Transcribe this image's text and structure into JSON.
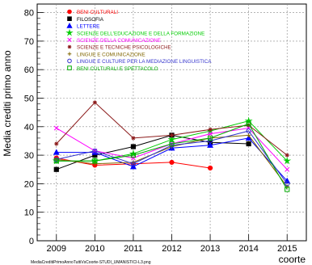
{
  "chart_data": {
    "type": "line",
    "xlabel": "coorte",
    "ylabel": "Media crediti primo anno",
    "footer": "MediaCreditiPrimoAnnoTuttiVsCoorte-STUDI_UMANISTICI-L3.png",
    "x": [
      2009,
      2010,
      2011,
      2012,
      2013,
      2014,
      2015
    ],
    "xlim": [
      2008.5,
      2015.5
    ],
    "ylim": [
      0,
      83
    ],
    "yticks": [
      0,
      10,
      20,
      30,
      40,
      50,
      60,
      70,
      80
    ],
    "grid": true,
    "legend_position": "top-left",
    "series": [
      {
        "name": "BENI CULTURALI",
        "color": "#ff0000",
        "marker": "circle",
        "values": [
          29,
          26.5,
          27,
          27.5,
          25.5,
          null,
          null
        ]
      },
      {
        "name": "FILOSOFIA",
        "color": "#000000",
        "marker": "square",
        "values": [
          25,
          30,
          33,
          37,
          34.5,
          34,
          null
        ]
      },
      {
        "name": "LETTERE",
        "color": "#0000ff",
        "marker": "triangle",
        "values": [
          31,
          31,
          26,
          32.5,
          33.5,
          36,
          21
        ]
      },
      {
        "name": "SCIENZE DELL'EDUCAZIONE E DELLA FORMAZIONE",
        "color": "#00cc00",
        "marker": "star",
        "values": [
          28,
          28,
          30.5,
          35.5,
          38.5,
          42,
          28
        ]
      },
      {
        "name": "SCIENZE DELLA COMUNICAZIONE",
        "color": "#ff00ff",
        "marker": "x",
        "values": [
          39.5,
          31.5,
          29,
          34,
          37.5,
          39.5,
          25
        ]
      },
      {
        "name": "SCIENZE E TECNICHE PSICOLOGICHE",
        "color": "#8b1a1a",
        "marker": "asterisk",
        "values": [
          34,
          48.5,
          36,
          37,
          39,
          40.5,
          30
        ]
      },
      {
        "name": "LINGUE E COMUNICAZIONE",
        "color": "#806600",
        "marker": "plus",
        "values": [
          28.5,
          27,
          27.5,
          33,
          36,
          37,
          19
        ]
      },
      {
        "name": "LINGUE E CULTURE PER LA MEDIAZIONE LINGUISTICA",
        "color": "#3333cc",
        "marker": "open-circle",
        "values": [
          28.5,
          31.5,
          27,
          33.5,
          35,
          38.5,
          20
        ]
      },
      {
        "name": "BENI CULTURALI E SPETTACOLO",
        "color": "#00aa00",
        "marker": "open-square",
        "values": [
          28,
          28,
          30,
          34,
          36,
          41,
          18
        ]
      }
    ]
  }
}
